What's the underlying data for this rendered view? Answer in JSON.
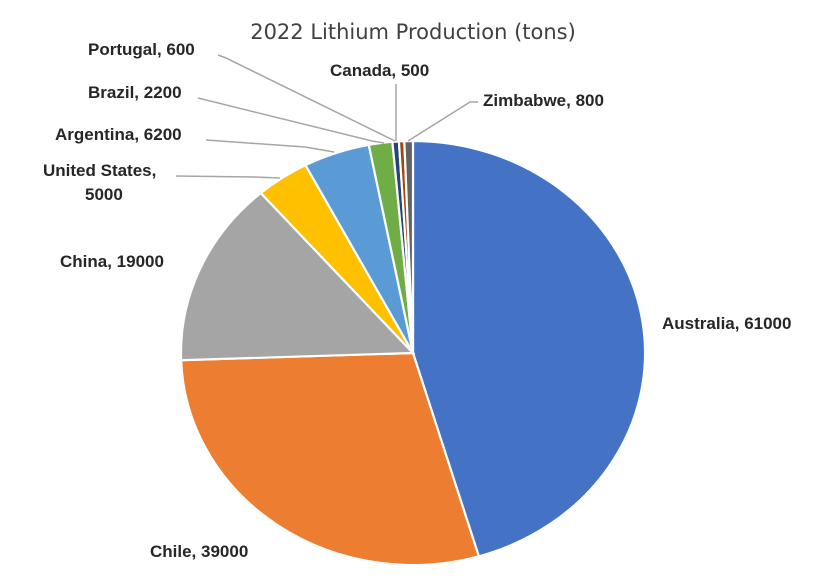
{
  "chart_data": {
    "type": "pie",
    "title": "2022 Lithium Production (tons)",
    "slices": [
      {
        "label": "Australia",
        "value": 61000,
        "color": "#4472C4",
        "label_text": "Australia, 61000"
      },
      {
        "label": "Chile",
        "value": 39000,
        "color": "#ED7D31",
        "label_text": "Chile, 39000"
      },
      {
        "label": "China",
        "value": 19000,
        "color": "#A5A5A5",
        "label_text": "China, 19000"
      },
      {
        "label": "United States",
        "value": 5000,
        "color": "#FFC000",
        "label_lines": [
          "United States,",
          "5000"
        ]
      },
      {
        "label": "Argentina",
        "value": 6200,
        "color": "#5B9BD5",
        "label_text": "Argentina, 6200"
      },
      {
        "label": "Brazil",
        "value": 2200,
        "color": "#70AD47",
        "label_text": "Brazil, 2200"
      },
      {
        "label": "Portugal",
        "value": 600,
        "color": "#264478",
        "label_text": "Portugal, 600"
      },
      {
        "label": "Canada",
        "value": 500,
        "color": "#9E480E",
        "label_text": "Canada, 500"
      },
      {
        "label": "Zimbabwe",
        "value": 800,
        "color": "#636363",
        "label_text": "Zimbabwe, 800"
      }
    ],
    "legend": "none",
    "data_labels": "category and value"
  }
}
